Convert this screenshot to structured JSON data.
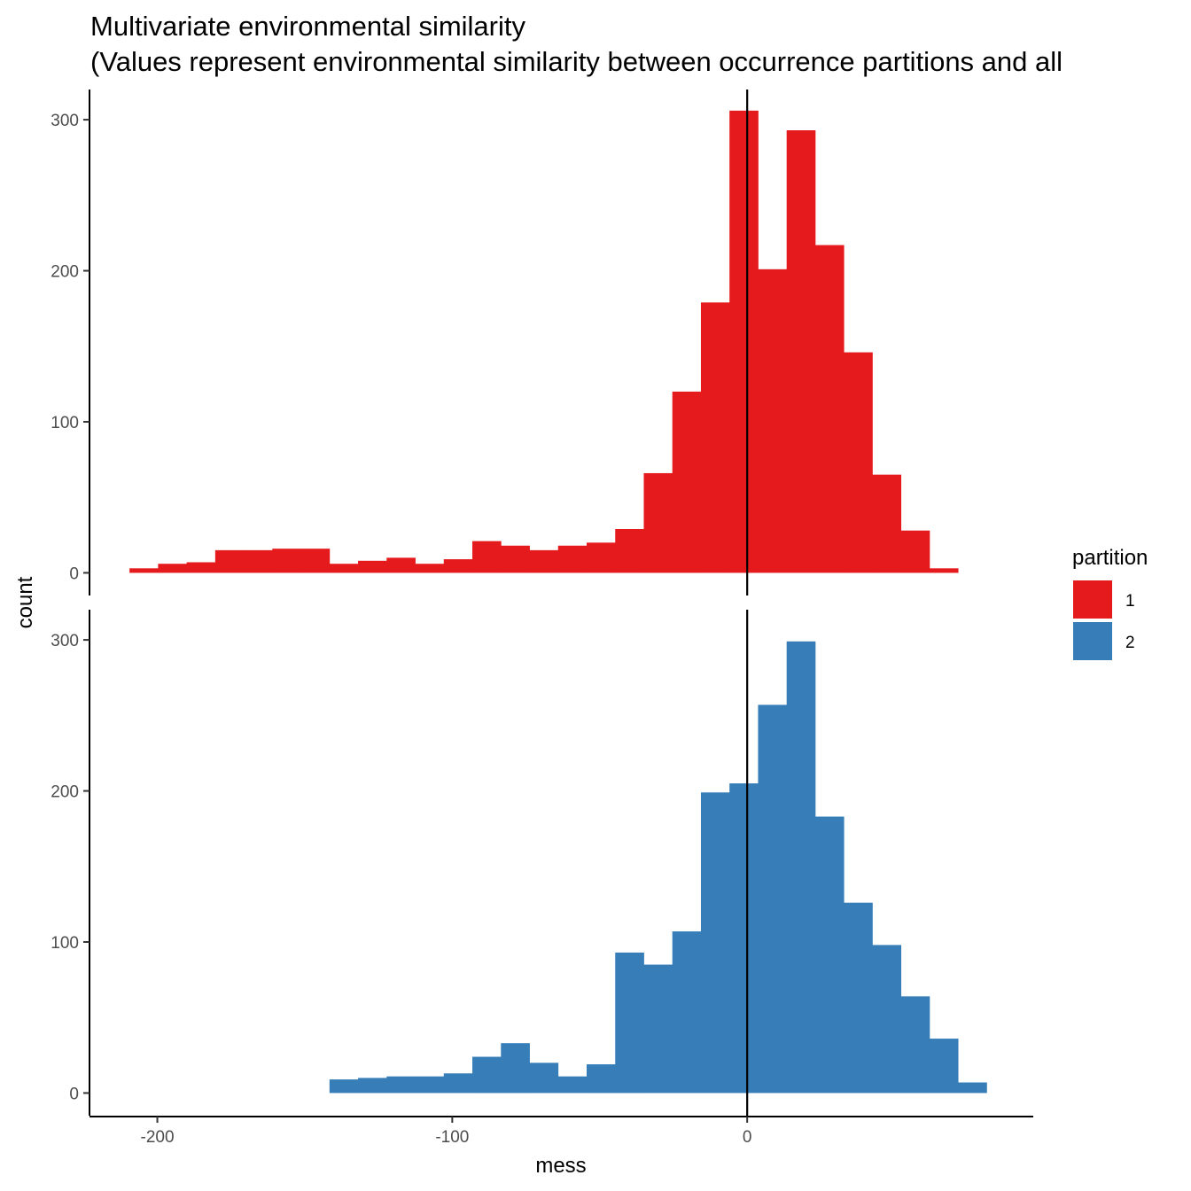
{
  "chart_data": {
    "type": "bar",
    "title": "Multivariate environmental similarity",
    "subtitle": "(Values represent environmental similarity between occurrence partitions and all",
    "xlabel": "mess",
    "ylabel": "count",
    "xlim": [
      -223,
      97
    ],
    "ylim": [
      -15,
      320
    ],
    "x_ticks": [
      -200,
      -100,
      0
    ],
    "y_ticks": [
      0,
      100,
      200,
      300
    ],
    "vline_x": 0,
    "bin_width": 9.6875,
    "bin_edges": [
      -209.4375,
      -199.75,
      -190.0625,
      -180.375,
      -170.6875,
      -161.0,
      -151.3125,
      -141.625,
      -131.9375,
      -122.25,
      -112.5625,
      -102.875,
      -93.1875,
      -83.5,
      -73.8125,
      -64.125,
      -54.4375,
      -44.75,
      -35.0625,
      -25.375,
      -15.6875,
      -6.0,
      3.6875,
      13.375,
      23.0625,
      32.75,
      42.4375,
      52.125,
      61.8125,
      71.5,
      81.1875
    ],
    "legend": {
      "title": "partition",
      "position": "right",
      "entries": [
        {
          "label": "1",
          "color": "#E41A1C"
        },
        {
          "label": "2",
          "color": "#377EB8"
        }
      ]
    },
    "series": [
      {
        "name": "1",
        "color": "#E41A1C",
        "values": [
          3,
          6,
          7,
          15,
          15,
          16,
          16,
          6,
          8,
          10,
          6,
          9,
          21,
          18,
          15,
          18,
          20,
          29,
          66,
          120,
          179,
          306,
          201,
          293,
          217,
          146,
          65,
          28,
          3,
          0
        ]
      },
      {
        "name": "2",
        "color": "#377EB8",
        "values": [
          0,
          0,
          0,
          0,
          0,
          0,
          0,
          9,
          10,
          11,
          11,
          13,
          24,
          33,
          20,
          11,
          19,
          93,
          85,
          107,
          199,
          205,
          257,
          299,
          183,
          126,
          98,
          64,
          36,
          7
        ]
      }
    ]
  }
}
